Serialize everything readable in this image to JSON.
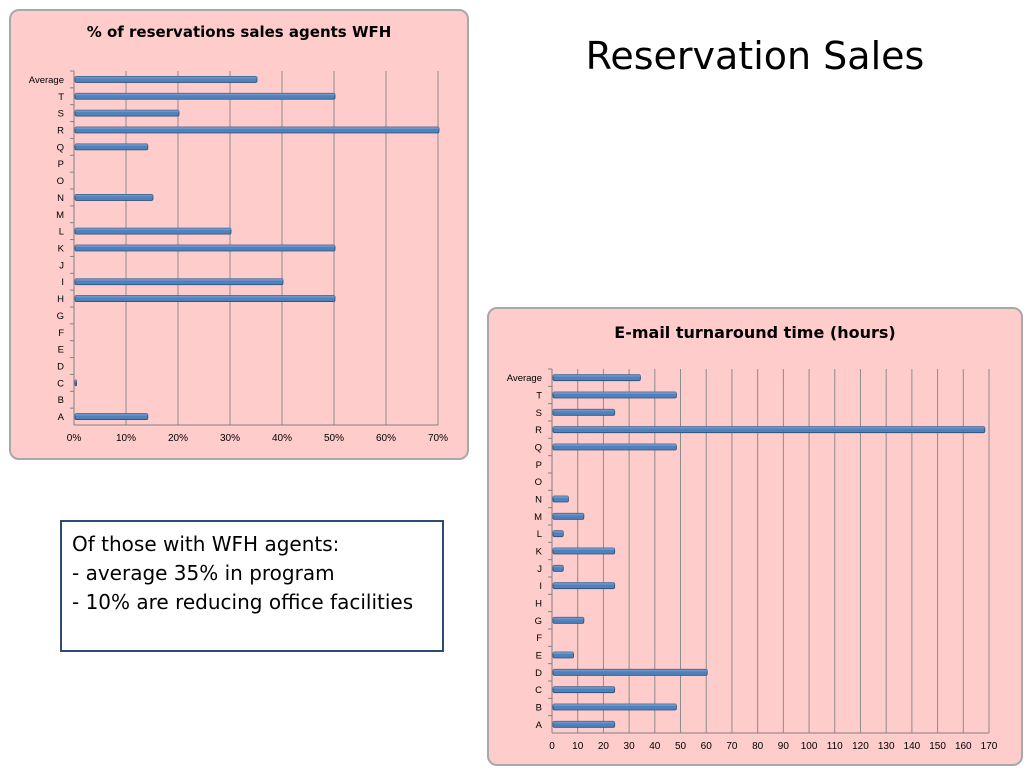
{
  "slide": {
    "title": "Reservation Sales"
  },
  "note": {
    "lines": [
      "Of those with WFH agents:",
      "- average 35% in program",
      "- 10% are reducing office facilities"
    ]
  },
  "colors": {
    "panel_background": "#ffcccc",
    "bar_fill": "#4f81bd",
    "bar_dark": "#2c4d75",
    "gridline": "#8c8c8c",
    "note_border": "#2e4b73"
  },
  "chart_data": [
    {
      "type": "bar",
      "orientation": "horizontal",
      "title": "% of reservations sales agents  WFH",
      "categories": [
        "A",
        "B",
        "C",
        "D",
        "E",
        "F",
        "G",
        "H",
        "I",
        "J",
        "K",
        "L",
        "M",
        "N",
        "O",
        "P",
        "Q",
        "R",
        "S",
        "T",
        "Average"
      ],
      "values": [
        14,
        0,
        0.3,
        0,
        0,
        0,
        0,
        50,
        40,
        0,
        50,
        30,
        0,
        15,
        0,
        0,
        14,
        70,
        20,
        50,
        35
      ],
      "xlim": [
        0,
        70
      ],
      "xticks": [
        0,
        10,
        20,
        30,
        40,
        50,
        60,
        70
      ],
      "xtick_labels": [
        "0%",
        "10%",
        "20%",
        "30%",
        "40%",
        "50%",
        "60%",
        "70%"
      ],
      "grid": "vertical"
    },
    {
      "type": "bar",
      "orientation": "horizontal",
      "title": "E-mail turnaround time (hours)",
      "categories": [
        "A",
        "B",
        "C",
        "D",
        "E",
        "F",
        "G",
        "H",
        "I",
        "J",
        "K",
        "L",
        "M",
        "N",
        "O",
        "P",
        "Q",
        "R",
        "S",
        "T",
        "Average"
      ],
      "values": [
        24,
        48,
        24,
        60,
        8,
        0,
        12,
        0,
        24,
        4,
        24,
        4,
        12,
        6,
        0,
        0,
        48,
        168,
        24,
        48,
        34
      ],
      "xlim": [
        0,
        170
      ],
      "xticks": [
        0,
        10,
        20,
        30,
        40,
        50,
        60,
        70,
        80,
        90,
        100,
        110,
        120,
        130,
        140,
        150,
        160,
        170
      ],
      "xtick_labels": [
        "0",
        "10",
        "20",
        "30",
        "40",
        "50",
        "60",
        "70",
        "80",
        "90",
        "100",
        "110",
        "120",
        "130",
        "140",
        "150",
        "160",
        "170"
      ],
      "grid": "vertical"
    }
  ]
}
